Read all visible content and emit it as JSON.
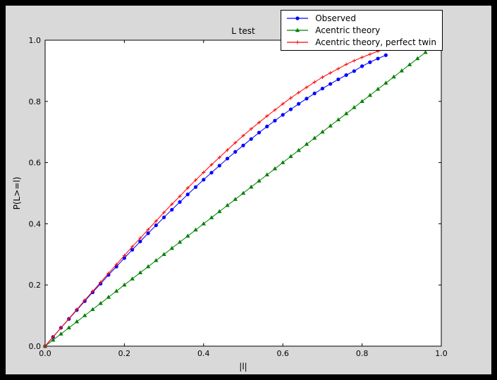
{
  "window": {
    "outer_bg": "#000000",
    "figure_bg": "#d9d9d9",
    "axes_bg": "#ffffff",
    "frame_color": "#000000"
  },
  "chart_data": {
    "type": "line",
    "title": "L test",
    "xlabel": "|l|",
    "ylabel": "P(L>=l)",
    "xlim": [
      0.0,
      1.0
    ],
    "ylim": [
      0.0,
      1.0
    ],
    "xticks": [
      0.0,
      0.2,
      0.4,
      0.6,
      0.8,
      1.0
    ],
    "yticks": [
      0.0,
      0.2,
      0.4,
      0.6,
      0.8,
      1.0
    ],
    "grid": false,
    "legend_position": "upper right",
    "series": [
      {
        "name": "Observed",
        "color": "#0000ff",
        "marker": "circle",
        "x": [
          0,
          0.02,
          0.04,
          0.06,
          0.08,
          0.1,
          0.12,
          0.14,
          0.16,
          0.18,
          0.2,
          0.22,
          0.24,
          0.26,
          0.28,
          0.3,
          0.32,
          0.34,
          0.36,
          0.38,
          0.4,
          0.42,
          0.44,
          0.46,
          0.48,
          0.5,
          0.52,
          0.54,
          0.56,
          0.58,
          0.6,
          0.62,
          0.64,
          0.66,
          0.68,
          0.7,
          0.72,
          0.74,
          0.76,
          0.78,
          0.8,
          0.82,
          0.84,
          0.86
        ],
        "y": [
          0,
          0.03,
          0.06,
          0.089,
          0.118,
          0.147,
          0.176,
          0.204,
          0.233,
          0.26,
          0.288,
          0.315,
          0.342,
          0.369,
          0.395,
          0.421,
          0.446,
          0.471,
          0.496,
          0.52,
          0.544,
          0.567,
          0.59,
          0.613,
          0.635,
          0.656,
          0.677,
          0.698,
          0.718,
          0.737,
          0.756,
          0.774,
          0.792,
          0.809,
          0.826,
          0.842,
          0.857,
          0.872,
          0.886,
          0.899,
          0.915,
          0.928,
          0.94,
          0.951
        ]
      },
      {
        "name": "Acentric theory",
        "color": "#008000",
        "marker": "triangle",
        "x": [
          0,
          0.02,
          0.04,
          0.06,
          0.08,
          0.1,
          0.12,
          0.14,
          0.16,
          0.18,
          0.2,
          0.22,
          0.24,
          0.26,
          0.28,
          0.3,
          0.32,
          0.34,
          0.36,
          0.38,
          0.4,
          0.42,
          0.44,
          0.46,
          0.48,
          0.5,
          0.52,
          0.54,
          0.56,
          0.58,
          0.6,
          0.62,
          0.64,
          0.66,
          0.68,
          0.7,
          0.72,
          0.74,
          0.76,
          0.78,
          0.8,
          0.82,
          0.84,
          0.86,
          0.88,
          0.9,
          0.92,
          0.94,
          0.96
        ],
        "y": [
          0,
          0.02,
          0.04,
          0.06,
          0.08,
          0.1,
          0.12,
          0.14,
          0.16,
          0.18,
          0.2,
          0.22,
          0.24,
          0.26,
          0.28,
          0.3,
          0.32,
          0.34,
          0.36,
          0.38,
          0.4,
          0.42,
          0.44,
          0.46,
          0.48,
          0.5,
          0.52,
          0.54,
          0.56,
          0.58,
          0.6,
          0.62,
          0.64,
          0.66,
          0.68,
          0.7,
          0.72,
          0.74,
          0.76,
          0.78,
          0.8,
          0.82,
          0.84,
          0.86,
          0.88,
          0.9,
          0.92,
          0.94,
          0.96
        ]
      },
      {
        "name": "Acentric theory, perfect twin",
        "color": "#ff0000",
        "marker": "plus",
        "x": [
          0,
          0.02,
          0.04,
          0.06,
          0.08,
          0.1,
          0.12,
          0.14,
          0.16,
          0.18,
          0.2,
          0.22,
          0.24,
          0.26,
          0.28,
          0.3,
          0.32,
          0.34,
          0.36,
          0.38,
          0.4,
          0.42,
          0.44,
          0.46,
          0.48,
          0.5,
          0.52,
          0.54,
          0.56,
          0.58,
          0.6,
          0.62,
          0.64,
          0.66,
          0.68,
          0.7,
          0.72,
          0.74,
          0.76,
          0.78,
          0.8,
          0.82,
          0.84,
          0.86,
          0.88,
          0.9,
          0.92,
          0.94,
          0.96
        ],
        "y": [
          0,
          0.03,
          0.06,
          0.09,
          0.12,
          0.15,
          0.179,
          0.209,
          0.238,
          0.267,
          0.296,
          0.325,
          0.353,
          0.381,
          0.409,
          0.437,
          0.464,
          0.49,
          0.517,
          0.543,
          0.568,
          0.593,
          0.617,
          0.641,
          0.665,
          0.688,
          0.71,
          0.731,
          0.752,
          0.772,
          0.792,
          0.811,
          0.829,
          0.846,
          0.863,
          0.879,
          0.893,
          0.907,
          0.921,
          0.933,
          0.944,
          0.954,
          0.964,
          0.972,
          0.979,
          0.986,
          0.991,
          0.995,
          0.998
        ]
      }
    ]
  }
}
